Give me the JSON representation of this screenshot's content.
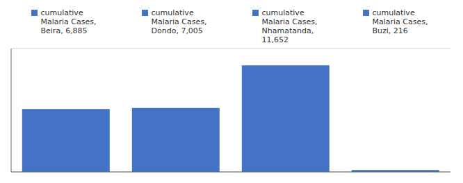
{
  "chart_data": {
    "type": "bar",
    "categories": [
      "cumulative\nMalaria Cases,\nBeira, 6,885",
      "cumulative\nMalaria Cases,\nDondo, 7,005",
      "cumulative\nMalaria Cases,\nNhamatanda,\n11,652",
      "cumulative\nMalaria Cases,\nBuzi, 216"
    ],
    "values": [
      6885,
      7005,
      11652,
      216
    ],
    "color": "#4472C4",
    "ylim": [
      0,
      13500
    ],
    "yticks": [
      0,
      3000,
      6000,
      9000,
      12000
    ],
    "grid": true,
    "tick_labels": false,
    "legend": "top"
  }
}
